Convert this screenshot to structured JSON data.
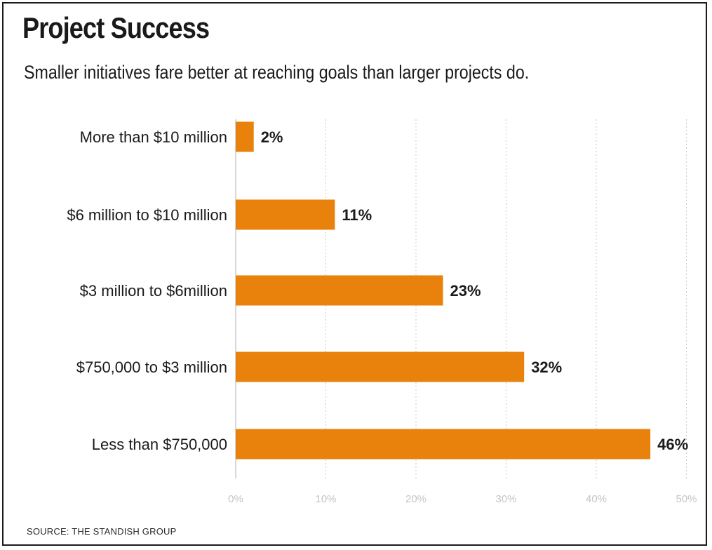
{
  "header": {
    "title": "Project Success",
    "subtitle": "Smaller initiatives fare better at reaching goals than larger projects do."
  },
  "footer": {
    "source": "SOURCE: THE STANDISH GROUP"
  },
  "colors": {
    "bar": "#e8820c",
    "grid": "#c8c8c8",
    "text": "#1a1a1a"
  },
  "chart_data": {
    "type": "bar",
    "orientation": "horizontal",
    "categories": [
      "More than $10 million",
      "$6 million to $10 million",
      "$3 million to $6million",
      "$750,000 to $3 million",
      "Less than $750,000"
    ],
    "values": [
      2,
      11,
      23,
      32,
      46
    ],
    "value_labels": [
      "2%",
      "11%",
      "23%",
      "32%",
      "46%"
    ],
    "xlim": [
      0,
      50
    ],
    "xticks": [
      0,
      10,
      20,
      30,
      40,
      50
    ],
    "xtick_labels": [
      "0%",
      "10%",
      "20%",
      "30%",
      "40%",
      "50%"
    ],
    "grid": true,
    "legend": "none"
  }
}
